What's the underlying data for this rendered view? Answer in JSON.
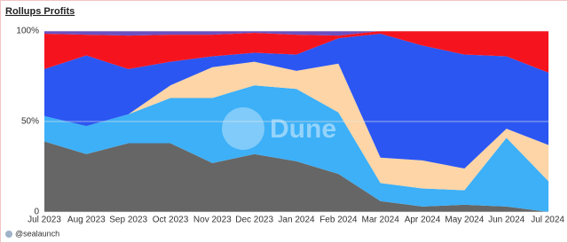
{
  "chart_data": {
    "type": "stacked_area_percent",
    "title": "Rollups Profits",
    "footer": "@sealaunch",
    "watermark": "Dune",
    "categories": [
      "Jul 2023",
      "Aug 2023",
      "Sep 2023",
      "Oct 2023",
      "Nov 2023",
      "Dec 2023",
      "Jan 2024",
      "Feb 2024",
      "Mar 2024",
      "Apr 2024",
      "May 2024",
      "Jun 2024",
      "Jul 2024"
    ],
    "series": [
      {
        "color": "#666666",
        "values": [
          39,
          32,
          38,
          38,
          27,
          32,
          28,
          21,
          6,
          3,
          4,
          3,
          0
        ]
      },
      {
        "color": "#3db0f7",
        "values": [
          14,
          15.5,
          16,
          25,
          36,
          38,
          40,
          34,
          10,
          10,
          8,
          38,
          17
        ]
      },
      {
        "color": "#fdd5a6",
        "values": [
          0,
          0,
          0,
          7,
          17,
          13,
          10,
          27,
          14,
          15.5,
          12,
          5,
          20
        ]
      },
      {
        "color": "#2b56f2",
        "values": [
          26,
          39,
          25,
          13,
          6,
          5,
          9,
          14,
          68.5,
          63.5,
          63,
          40,
          40
        ]
      },
      {
        "color": "#f5141e",
        "values": [
          19.5,
          11.5,
          18.5,
          15,
          12,
          11,
          11,
          1.5,
          1.5,
          8,
          13,
          14,
          23
        ]
      },
      {
        "color": "#6b4fc0",
        "values": [
          1.5,
          2,
          2.5,
          2,
          2,
          1,
          2,
          2.5,
          0,
          0,
          0,
          0,
          0
        ]
      }
    ],
    "ylim": [
      0,
      100
    ],
    "yticks": [
      0,
      {
        "value": 50,
        "label": "50%"
      },
      {
        "value": 100,
        "label": "100%"
      }
    ],
    "grid": true
  }
}
